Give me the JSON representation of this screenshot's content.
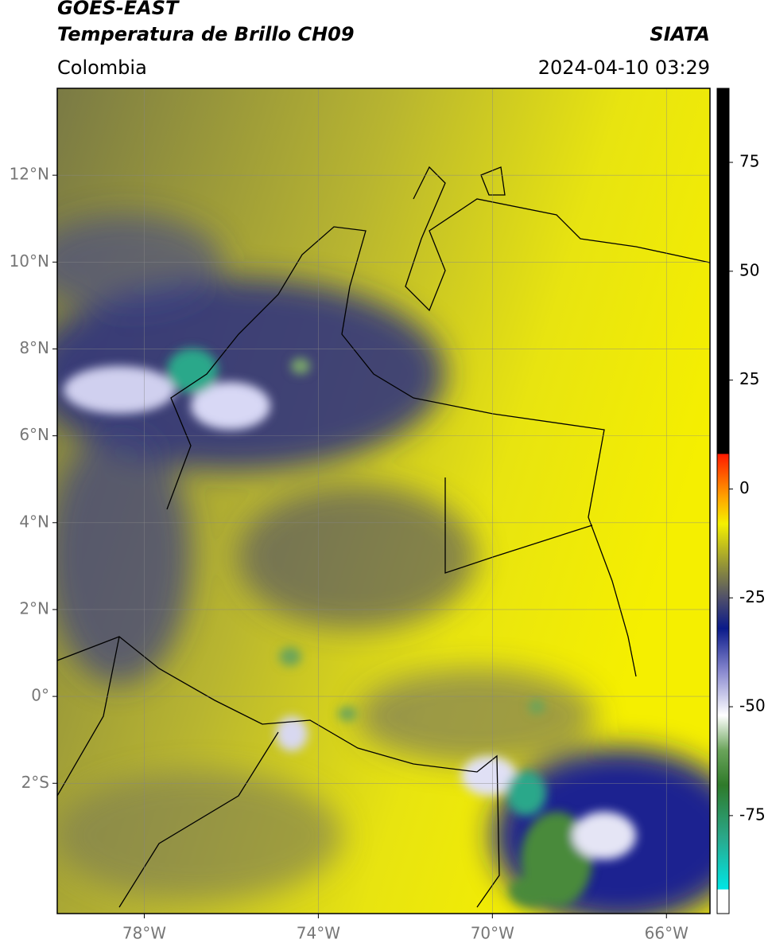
{
  "header": {
    "title": "GOES-EAST",
    "subtitle": "Temperatura de Brillo CH09",
    "organization": "SIATA",
    "region": "Colombia",
    "timestamp": "2024-04-10 03:29"
  },
  "map": {
    "lat_range": [
      -5,
      14
    ],
    "lon_range": [
      -80,
      -65
    ],
    "lat_ticks": [
      {
        "value": 12,
        "label": "12°N"
      },
      {
        "value": 10,
        "label": "10°N"
      },
      {
        "value": 8,
        "label": "8°N"
      },
      {
        "value": 6,
        "label": "6°N"
      },
      {
        "value": 4,
        "label": "4°N"
      },
      {
        "value": 2,
        "label": "2°N"
      },
      {
        "value": 0,
        "label": "0°"
      },
      {
        "value": -2,
        "label": "2°S"
      }
    ],
    "lon_ticks": [
      {
        "value": -78,
        "label": "78°W"
      },
      {
        "value": -74,
        "label": "74°W"
      },
      {
        "value": -70,
        "label": "70°W"
      },
      {
        "value": -66,
        "label": "66°W"
      }
    ],
    "grid": true
  },
  "colorbar": {
    "range": [
      -97.5,
      92
    ],
    "ticks": [
      75,
      50,
      25,
      0,
      -25,
      -50,
      -75
    ],
    "stops": [
      {
        "value": -97.5,
        "color": "#ffffff"
      },
      {
        "value": -92,
        "color": "#ffffff"
      },
      {
        "value": -91.9,
        "color": "#00e5e5"
      },
      {
        "value": -80,
        "color": "#2aa88a"
      },
      {
        "value": -68,
        "color": "#2f7a2a"
      },
      {
        "value": -60,
        "color": "#6aa45a"
      },
      {
        "value": -52,
        "color": "#ffffff"
      },
      {
        "value": -42,
        "color": "#8a8ad0"
      },
      {
        "value": -32,
        "color": "#0a1a8a"
      },
      {
        "value": -25,
        "color": "#50506a"
      },
      {
        "value": -18,
        "color": "#8f8f3a"
      },
      {
        "value": -8,
        "color": "#f5f000"
      },
      {
        "value": -2,
        "color": "#ffa500"
      },
      {
        "value": 8,
        "color": "#ff1a00"
      },
      {
        "value": 8.1,
        "color": "#000000"
      },
      {
        "value": 92,
        "color": "#000000"
      }
    ]
  }
}
